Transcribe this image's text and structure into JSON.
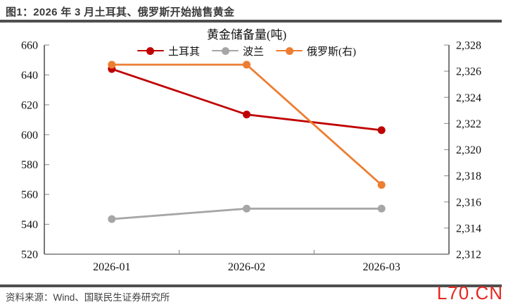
{
  "header": {
    "figure_title": "图1：2026 年 3 月土耳其、俄罗斯开始抛售黄金"
  },
  "footer": {
    "source_note": "资料来源：Wind、国联民生证券研究所",
    "watermark": "L70.CN"
  },
  "colors": {
    "watermark": "#E8251F",
    "rule": "#4F4F4F"
  },
  "chart_data": {
    "type": "line",
    "title": "黄金储备量(吨)",
    "categories": [
      "2026-01",
      "2026-02",
      "2026-03"
    ],
    "series": [
      {
        "name": "土耳其",
        "axis": "left",
        "color": "#C00000",
        "values": [
          644,
          613.5,
          603
        ]
      },
      {
        "name": "波兰",
        "axis": "left",
        "color": "#A6A6A6",
        "values": [
          543.5,
          550.5,
          550.5
        ]
      },
      {
        "name": "俄罗斯(右)",
        "axis": "right",
        "color": "#ED7D31",
        "values": [
          2326.5,
          2326.5,
          2317.3
        ]
      }
    ],
    "left_axis": {
      "min": 520,
      "max": 660,
      "step": 20,
      "tick_labels": [
        "660",
        "640",
        "620",
        "600",
        "580",
        "560",
        "540",
        "520"
      ]
    },
    "right_axis": {
      "min": 2312,
      "max": 2328,
      "step": 2,
      "tick_labels": [
        "2,328",
        "2,326",
        "2,324",
        "2,322",
        "2,320",
        "2,318",
        "2,316",
        "2,314",
        "2,312"
      ]
    },
    "grid": false,
    "legend_position": "top-center",
    "marker": "circle"
  }
}
